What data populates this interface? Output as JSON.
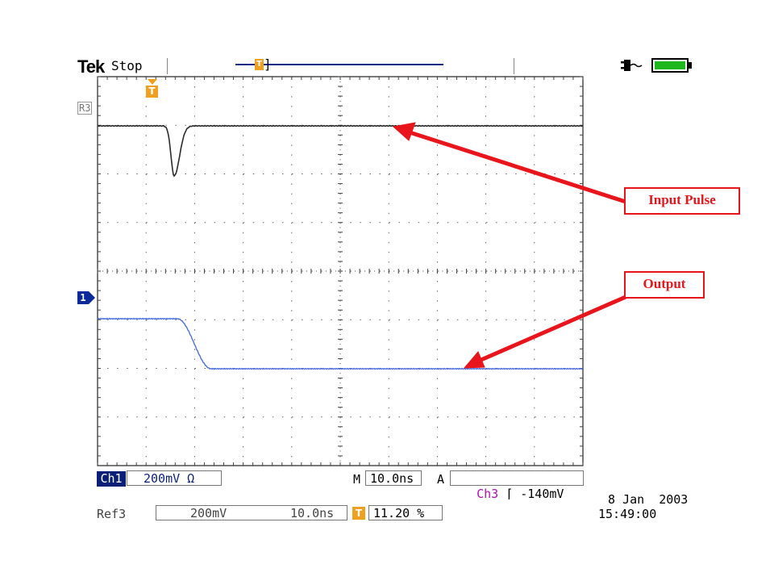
{
  "header": {
    "brand": "Tek",
    "status": "Stop",
    "trigger_marker": "T",
    "power_icon": "plug-icon",
    "battery_icon": "battery-icon",
    "battery_color": "#1eb81e"
  },
  "screen": {
    "ref_marker": "R3",
    "ch1_marker": "1",
    "trigger_position_marker": "T",
    "input_trace_color": "#2b2b2b",
    "output_trace_color": "#4a6fe0",
    "accent_red": "#e8161c"
  },
  "annotations": {
    "input_pulse": "Input Pulse",
    "output": "Output"
  },
  "bottom": {
    "ch1_label": "Ch1",
    "ch1_scale": "200mV Ω",
    "m_label": "M",
    "timebase": "10.0ns",
    "a_label": "A",
    "trigger_source": "Ch3",
    "trigger_level": "⌈ -140mV",
    "ref_label": "Ref3",
    "ref_scale": "200mV",
    "ref_timebase": "10.0ns",
    "trigger_pos_marker": "T",
    "trigger_pos": "11.20 %",
    "date": "8 Jan  2003",
    "time": "15:49:00"
  }
}
